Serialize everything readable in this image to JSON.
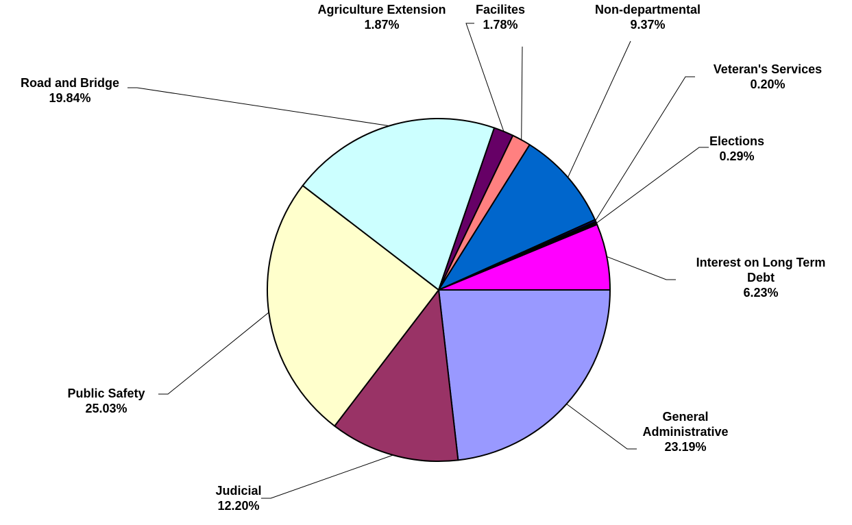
{
  "chart_data": {
    "type": "pie",
    "start_angle": "right-horizontal",
    "direction": "clockwise",
    "slices": [
      {
        "name": "General Administrative",
        "value": 23.19,
        "display": "23.19%",
        "color": "#9999FF",
        "label_lines": [
          "General",
          "Administrative"
        ]
      },
      {
        "name": "Judicial",
        "value": 12.2,
        "display": "12.20%",
        "color": "#993366",
        "label_lines": [
          "Judicial"
        ]
      },
      {
        "name": "Public Safety",
        "value": 25.03,
        "display": "25.03%",
        "color": "#FFFFCC",
        "label_lines": [
          "Public Safety"
        ]
      },
      {
        "name": "Road and Bridge",
        "value": 19.84,
        "display": "19.84%",
        "color": "#CCFFFF",
        "label_lines": [
          "Road and Bridge"
        ]
      },
      {
        "name": "Agriculture Extension",
        "value": 1.87,
        "display": "1.87%",
        "color": "#660066",
        "label_lines": [
          "Agriculture Extension"
        ]
      },
      {
        "name": "Facilites",
        "value": 1.78,
        "display": "1.78%",
        "color": "#FF8080",
        "label_lines": [
          "Facilites"
        ]
      },
      {
        "name": "Non-departmental",
        "value": 9.37,
        "display": "9.37%",
        "color": "#0066CC",
        "label_lines": [
          "Non-departmental"
        ]
      },
      {
        "name": "Veteran's Services",
        "value": 0.2,
        "display": "0.20%",
        "color": "#000080",
        "label_lines": [
          "Veteran's Services"
        ]
      },
      {
        "name": "Elections",
        "value": 0.29,
        "display": "0.29%",
        "color": "#000000",
        "label_lines": [
          "Elections"
        ]
      },
      {
        "name": "Interest on Long Term Debt",
        "value": 6.23,
        "display": "6.23%",
        "color": "#FF00FF",
        "label_lines": [
          "Interest on Long Term",
          "Debt"
        ]
      }
    ]
  }
}
